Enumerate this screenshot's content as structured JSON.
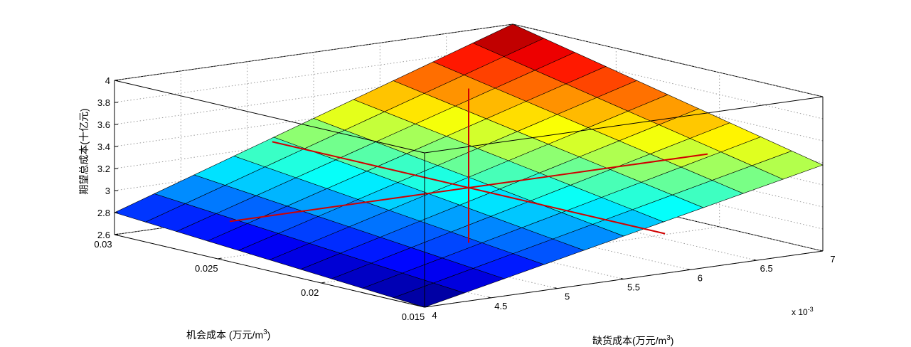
{
  "chart_data": {
    "type": "surface3d",
    "xlabel": "缺货成本(万元/m",
    "xlabel_sup": "3",
    "xlabel_end": ")",
    "ylabel": "机会成本 (万元/m",
    "ylabel_sup": "3",
    "ylabel_end": ")",
    "zlabel": "期望总成本(十亿元)",
    "x_exponent_base": "x 10",
    "x_exponent_power": "-3",
    "x_ticks": [
      "4",
      "4.5",
      "5",
      "5.5",
      "6",
      "6.5",
      "7"
    ],
    "y_ticks": [
      "0.015",
      "0.02",
      "0.025",
      "0.03"
    ],
    "z_ticks": [
      "2.6",
      "2.8",
      "3",
      "3.2",
      "3.4",
      "3.6",
      "3.8",
      "4"
    ],
    "xlim": [
      0.004,
      0.007
    ],
    "ylim": [
      0.015,
      0.03
    ],
    "zlim": [
      2.6,
      4.0
    ],
    "grid": true,
    "colormap": "jet",
    "surface_grid_size": [
      11,
      11
    ],
    "corner_values": {
      "x_min_y_min": 2.6,
      "x_min_y_max": 2.8,
      "x_max_y_min": 3.38,
      "x_max_y_max": 4.0
    },
    "marker_lines": {
      "point": [
        0.0055,
        0.0225,
        3.1
      ],
      "color": "#d00000"
    }
  }
}
